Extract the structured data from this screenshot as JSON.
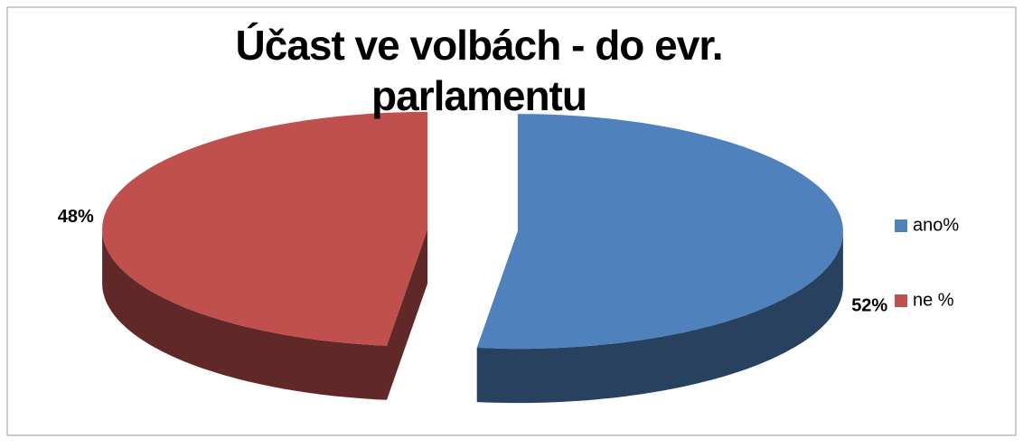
{
  "chart_data": {
    "type": "pie",
    "title": "Účast ve volbách - do evr. parlamentu",
    "categories": [
      "ano%",
      "ne %"
    ],
    "values": [
      52,
      48
    ],
    "value_labels": [
      "52%",
      "48%"
    ],
    "colors": [
      "#4f81bd",
      "#c0504d"
    ],
    "legend": "right"
  }
}
